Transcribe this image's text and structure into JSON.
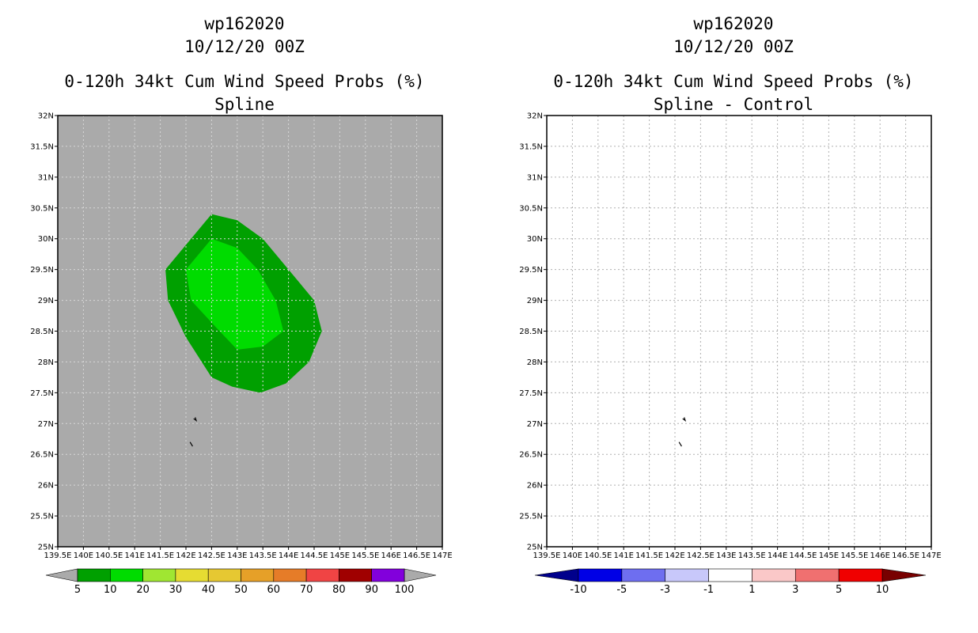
{
  "chart_data": [
    {
      "type": "heatmap",
      "title": "wp162020",
      "subtitle": "10/12/20 00Z",
      "heading": "0-120h 34kt Cum Wind Speed Probs (%)",
      "subheading": "Spline",
      "xlim": [
        139.5,
        147
      ],
      "ylim": [
        25,
        32
      ],
      "grid": true,
      "background_color": "#aaaaaa",
      "lat_ticks": [
        "32N",
        "31.5N",
        "31N",
        "30.5N",
        "30N",
        "29.5N",
        "29N",
        "28.5N",
        "28N",
        "27.5N",
        "27N",
        "26.5N",
        "26N",
        "25.5N",
        "25N"
      ],
      "lon_ticks": [
        "139.5E",
        "140E",
        "140.5E",
        "141E",
        "141.5E",
        "142E",
        "142.5E",
        "143E",
        "143.5E",
        "144E",
        "144.5E",
        "145E",
        "145.5E",
        "146E",
        "146.5E",
        "147E"
      ],
      "contours": [
        {
          "level": "5-10",
          "color": "#00a000",
          "points": [
            [
              141.9,
              29.8
            ],
            [
              142.5,
              30.4
            ],
            [
              143.0,
              30.3
            ],
            [
              143.5,
              30.0
            ],
            [
              144.0,
              29.5
            ],
            [
              144.5,
              29.0
            ],
            [
              144.65,
              28.5
            ],
            [
              144.4,
              28.0
            ],
            [
              143.95,
              27.65
            ],
            [
              143.45,
              27.5
            ],
            [
              142.9,
              27.6
            ],
            [
              142.5,
              27.75
            ],
            [
              142.0,
              28.4
            ],
            [
              141.65,
              29.0
            ],
            [
              141.6,
              29.5
            ]
          ]
        },
        {
          "level": "10-20",
          "color": "#00dc00",
          "points": [
            [
              142.5,
              30.0
            ],
            [
              143.0,
              29.85
            ],
            [
              143.4,
              29.5
            ],
            [
              143.75,
              29.0
            ],
            [
              143.9,
              28.5
            ],
            [
              143.5,
              28.25
            ],
            [
              143.0,
              28.2
            ],
            [
              142.6,
              28.55
            ],
            [
              142.1,
              29.0
            ],
            [
              142.0,
              29.5
            ]
          ]
        }
      ],
      "islands": [
        {
          "name": "island-north",
          "points": [
            [
              142.15,
              27.08
            ],
            [
              142.2,
              27.05
            ],
            [
              142.18,
              27.1
            ]
          ]
        },
        {
          "name": "island-south",
          "points": [
            [
              142.08,
              26.7
            ],
            [
              142.13,
              26.63
            ]
          ]
        }
      ],
      "colorbar": {
        "labels": [
          "5",
          "10",
          "20",
          "30",
          "40",
          "50",
          "60",
          "70",
          "80",
          "90",
          "100"
        ],
        "low_color": "#aaaaaa",
        "high_color": "#aaaaaa",
        "colors": [
          "#00a000",
          "#00dc00",
          "#a0e632",
          "#e6dc32",
          "#e6c832",
          "#e6a028",
          "#e67c28",
          "#f04444",
          "#a00000",
          "#8200dc"
        ]
      }
    },
    {
      "type": "heatmap",
      "title": "wp162020",
      "subtitle": "10/12/20 00Z",
      "heading": "0-120h 34kt Cum Wind Speed Probs (%)",
      "subheading": "Spline - Control",
      "xlim": [
        139.5,
        147
      ],
      "ylim": [
        25,
        32
      ],
      "grid": true,
      "background_color": "#ffffff",
      "lat_ticks": [
        "32N",
        "31.5N",
        "31N",
        "30.5N",
        "30N",
        "29.5N",
        "29N",
        "28.5N",
        "28N",
        "27.5N",
        "27N",
        "26.5N",
        "26N",
        "25.5N",
        "25N"
      ],
      "lon_ticks": [
        "139.5E",
        "140E",
        "140.5E",
        "141E",
        "141.5E",
        "142E",
        "142.5E",
        "143E",
        "143.5E",
        "144E",
        "144.5E",
        "145E",
        "145.5E",
        "146E",
        "146.5E",
        "147E"
      ],
      "contours": [],
      "islands": [
        {
          "name": "island-north",
          "points": [
            [
              142.15,
              27.08
            ],
            [
              142.2,
              27.05
            ],
            [
              142.18,
              27.1
            ]
          ]
        },
        {
          "name": "island-south",
          "points": [
            [
              142.08,
              26.7
            ],
            [
              142.13,
              26.63
            ]
          ]
        }
      ],
      "colorbar": {
        "labels": [
          "-10",
          "-5",
          "-3",
          "-1",
          "1",
          "3",
          "5",
          "10"
        ],
        "low_color": "#00008c",
        "high_color": "#780000",
        "colors": [
          "#0000e6",
          "#6e6ef0",
          "#c8c8fa",
          "#ffffff",
          "#fac8c8",
          "#f07070",
          "#f00000"
        ]
      }
    }
  ]
}
